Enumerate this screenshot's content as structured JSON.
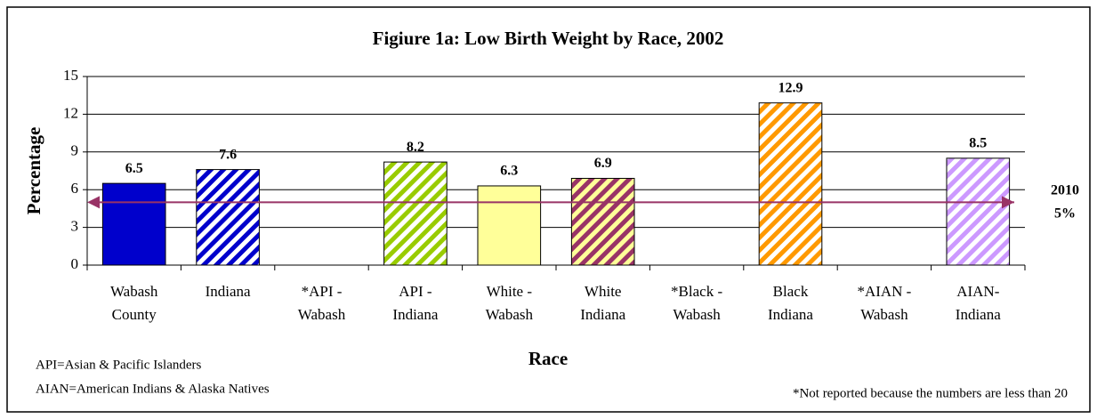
{
  "chart_data": {
    "type": "bar",
    "title": "Figiure 1a:  Low Birth Weight by Race, 2002",
    "y_label": "Percentage",
    "x_label": "Race",
    "categories": [
      [
        "Wabash",
        "County"
      ],
      [
        "Indiana"
      ],
      [
        "*API -",
        "Wabash"
      ],
      [
        "API  -",
        "Indiana"
      ],
      [
        "White -",
        "Wabash"
      ],
      [
        "White",
        "Indiana"
      ],
      [
        "*Black -",
        "Wabash"
      ],
      [
        "Black",
        "Indiana"
      ],
      [
        "*AIAN -",
        "Wabash"
      ],
      [
        "AIAN-",
        "Indiana"
      ]
    ],
    "values": [
      6.5,
      7.6,
      null,
      8.2,
      6.3,
      6.9,
      null,
      12.9,
      null,
      8.5
    ],
    "colors": [
      "#0000cc",
      "#0000cc",
      null,
      "#99cc00",
      "#ffff99",
      "#993366",
      null,
      "#ff9900",
      null,
      "#cc99ff"
    ],
    "hatched": [
      false,
      true,
      null,
      true,
      false,
      true,
      null,
      true,
      null,
      true
    ],
    "ylim": [
      0,
      15
    ],
    "yticks": [
      0,
      3,
      6,
      9,
      12,
      15
    ],
    "grid": true,
    "reference_line": {
      "value": 5,
      "label": [
        "2010",
        "5%"
      ],
      "color": "#993366"
    },
    "notes": [
      "API=Asian & Pacific Islanders",
      "AIAN=American Indians & Alaska Natives"
    ],
    "footnote": "*Not reported because the numbers are less than 20"
  }
}
